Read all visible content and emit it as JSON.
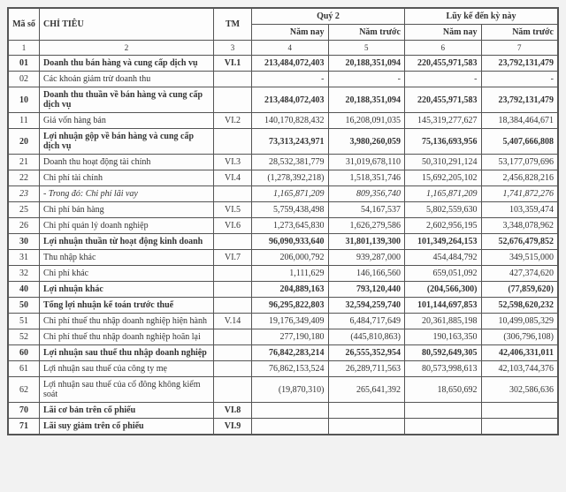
{
  "header": {
    "ms": "Mã số",
    "chitieu": "CHỈ TIÊU",
    "tm": "TM",
    "quy": "Quý 2",
    "luyke": "Lũy kế đến kỳ này",
    "namnay": "Năm nay",
    "namtruoc": "Năm trước"
  },
  "colnums": {
    "c1": "1",
    "c2": "2",
    "c3": "3",
    "c4": "4",
    "c5": "5",
    "c6": "6",
    "c7": "7"
  },
  "rows": [
    {
      "ms": "01",
      "ct": "Doanh thu bán hàng và cung cấp dịch vụ",
      "tm": "VI.1",
      "q_nn": "213,484,072,403",
      "q_nt": "20,188,351,094",
      "lk_nn": "220,455,971,583",
      "lk_nt": "23,792,131,479",
      "bold": true
    },
    {
      "ms": "02",
      "ct": "Các khoản giảm trừ doanh thu",
      "tm": "",
      "q_nn": "-",
      "q_nt": "-",
      "lk_nn": "-",
      "lk_nt": "-"
    },
    {
      "ms": "10",
      "ct": "Doanh thu thuần về bán hàng và cung cấp dịch vụ",
      "tm": "",
      "q_nn": "213,484,072,403",
      "q_nt": "20,188,351,094",
      "lk_nn": "220,455,971,583",
      "lk_nt": "23,792,131,479",
      "bold": true
    },
    {
      "ms": "11",
      "ct": "Giá vốn hàng bán",
      "tm": "VI.2",
      "q_nn": "140,170,828,432",
      "q_nt": "16,208,091,035",
      "lk_nn": "145,319,277,627",
      "lk_nt": "18,384,464,671"
    },
    {
      "ms": "20",
      "ct": "Lợi nhuận gộp về bán hàng và cung cấp dịch vụ",
      "tm": "",
      "q_nn": "73,313,243,971",
      "q_nt": "3,980,260,059",
      "lk_nn": "75,136,693,956",
      "lk_nt": "5,407,666,808",
      "bold": true
    },
    {
      "ms": "21",
      "ct": "Doanh thu hoạt động tài chính",
      "tm": "VI.3",
      "q_nn": "28,532,381,779",
      "q_nt": "31,019,678,110",
      "lk_nn": "50,310,291,124",
      "lk_nt": "53,177,079,696"
    },
    {
      "ms": "22",
      "ct": "Chi phí tài chính",
      "tm": "VI.4",
      "q_nn": "(1,278,392,218)",
      "q_nt": "1,518,351,746",
      "lk_nn": "15,692,205,102",
      "lk_nt": "2,456,828,216"
    },
    {
      "ms": "23",
      "ct": "- Trong đó: Chi phí lãi vay",
      "tm": "",
      "q_nn": "1,165,871,209",
      "q_nt": "809,356,740",
      "lk_nn": "1,165,871,209",
      "lk_nt": "1,741,872,276",
      "italic": true
    },
    {
      "ms": "25",
      "ct": "Chi phí bán hàng",
      "tm": "VI.5",
      "q_nn": "5,759,438,498",
      "q_nt": "54,167,537",
      "lk_nn": "5,802,559,630",
      "lk_nt": "103,359,474"
    },
    {
      "ms": "26",
      "ct": "Chi phí quản lý doanh nghiệp",
      "tm": "VI.6",
      "q_nn": "1,273,645,830",
      "q_nt": "1,626,279,586",
      "lk_nn": "2,602,956,195",
      "lk_nt": "3,348,078,962"
    },
    {
      "ms": "30",
      "ct": "Lợi nhuận thuần từ hoạt động kinh doanh",
      "tm": "",
      "q_nn": "96,090,933,640",
      "q_nt": "31,801,139,300",
      "lk_nn": "101,349,264,153",
      "lk_nt": "52,676,479,852",
      "bold": true
    },
    {
      "ms": "31",
      "ct": "Thu nhập khác",
      "tm": "VI.7",
      "q_nn": "206,000,792",
      "q_nt": "939,287,000",
      "lk_nn": "454,484,792",
      "lk_nt": "349,515,000"
    },
    {
      "ms": "32",
      "ct": "Chi phí khác",
      "tm": "",
      "q_nn": "1,111,629",
      "q_nt": "146,166,560",
      "lk_nn": "659,051,092",
      "lk_nt": "427,374,620"
    },
    {
      "ms": "40",
      "ct": "Lợi nhuận khác",
      "tm": "",
      "q_nn": "204,889,163",
      "q_nt": "793,120,440",
      "lk_nn": "(204,566,300)",
      "lk_nt": "(77,859,620)",
      "bold": true
    },
    {
      "ms": "50",
      "ct": "Tổng lợi nhuận kế toán trước thuế",
      "tm": "",
      "q_nn": "96,295,822,803",
      "q_nt": "32,594,259,740",
      "lk_nn": "101,144,697,853",
      "lk_nt": "52,598,620,232",
      "bold": true
    },
    {
      "ms": "51",
      "ct": "Chi phí thuế thu nhập doanh nghiệp hiện hành",
      "tm": "V.14",
      "q_nn": "19,176,349,409",
      "q_nt": "6,484,717,649",
      "lk_nn": "20,361,885,198",
      "lk_nt": "10,499,085,329"
    },
    {
      "ms": "52",
      "ct": "Chi phí thuế thu nhập doanh nghiệp hoãn lại",
      "tm": "",
      "q_nn": "277,190,180",
      "q_nt": "(445,810,863)",
      "lk_nn": "190,163,350",
      "lk_nt": "(306,796,108)"
    },
    {
      "ms": "60",
      "ct": "Lợi nhuận sau thuế thu nhập doanh nghiệp",
      "tm": "",
      "q_nn": "76,842,283,214",
      "q_nt": "26,555,352,954",
      "lk_nn": "80,592,649,305",
      "lk_nt": "42,406,331,011",
      "bold": true
    },
    {
      "ms": "61",
      "ct": "Lợi nhuận sau thuế của công ty mẹ",
      "tm": "",
      "q_nn": "76,862,153,524",
      "q_nt": "26,289,711,563",
      "lk_nn": "80,573,998,613",
      "lk_nt": "42,103,744,376"
    },
    {
      "ms": "62",
      "ct": "Lợi nhuận sau thuế của cổ đông không kiểm soát",
      "tm": "",
      "q_nn": "(19,870,310)",
      "q_nt": "265,641,392",
      "lk_nn": "18,650,692",
      "lk_nt": "302,586,636"
    },
    {
      "ms": "70",
      "ct": "Lãi cơ bản trên cổ phiếu",
      "tm": "VI.8",
      "q_nn": "",
      "q_nt": "",
      "lk_nn": "",
      "lk_nt": "",
      "bold": true
    },
    {
      "ms": "71",
      "ct": "Lãi suy giảm trên cổ phiếu",
      "tm": "VI.9",
      "q_nn": "",
      "q_nt": "",
      "lk_nn": "",
      "lk_nt": "",
      "bold": true
    }
  ]
}
